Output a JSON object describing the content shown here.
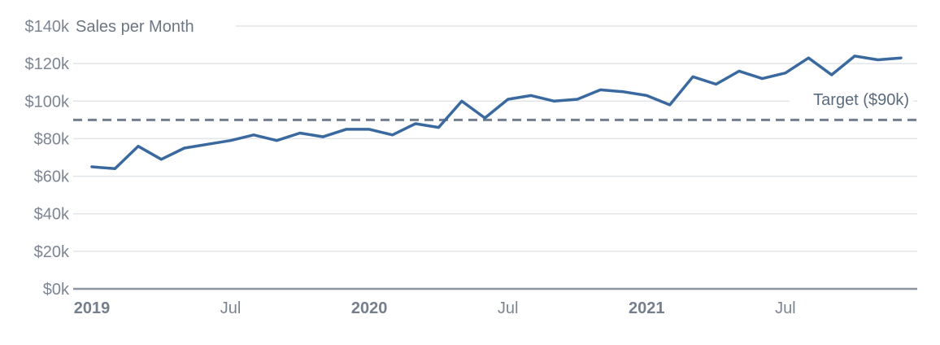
{
  "chart_data": {
    "type": "line",
    "title": "Sales per Month",
    "x": [
      "Jan 2019",
      "Feb 2019",
      "Mar 2019",
      "Apr 2019",
      "May 2019",
      "Jun 2019",
      "Jul 2019",
      "Aug 2019",
      "Sep 2019",
      "Oct 2019",
      "Nov 2019",
      "Dec 2019",
      "Jan 2020",
      "Feb 2020",
      "Mar 2020",
      "Apr 2020",
      "May 2020",
      "Jun 2020",
      "Jul 2020",
      "Aug 2020",
      "Sep 2020",
      "Oct 2020",
      "Nov 2020",
      "Dec 2020",
      "Jan 2021",
      "Feb 2021",
      "Mar 2021",
      "Apr 2021",
      "May 2021",
      "Jun 2021",
      "Jul 2021",
      "Aug 2021",
      "Sep 2021",
      "Oct 2021",
      "Nov 2021",
      "Dec 2021"
    ],
    "series": [
      {
        "name": "Sales per Month",
        "unit": "$k",
        "values": [
          65,
          64,
          76,
          69,
          75,
          77,
          79,
          82,
          79,
          83,
          81,
          85,
          85,
          82,
          88,
          86,
          100,
          91,
          101,
          103,
          100,
          101,
          106,
          105,
          103,
          98,
          113,
          109,
          116,
          112,
          115,
          123,
          114,
          124,
          122,
          123
        ]
      }
    ],
    "ylim": [
      0,
      140
    ],
    "y_ticks": [
      {
        "value": 140,
        "label": "$140k"
      },
      {
        "value": 120,
        "label": "$120k"
      },
      {
        "value": 100,
        "label": "$100k"
      },
      {
        "value": 80,
        "label": "$80k"
      },
      {
        "value": 60,
        "label": "$60k"
      },
      {
        "value": 40,
        "label": "$40k"
      },
      {
        "value": 20,
        "label": "$20k"
      },
      {
        "value": 0,
        "label": "$0k"
      }
    ],
    "x_ticks": [
      {
        "label": "2019",
        "month_index": 0,
        "bold": true
      },
      {
        "label": "Jul",
        "month_index": 6,
        "bold": false
      },
      {
        "label": "2020",
        "month_index": 12,
        "bold": true
      },
      {
        "label": "Jul",
        "month_index": 18,
        "bold": false
      },
      {
        "label": "2021",
        "month_index": 24,
        "bold": true
      },
      {
        "label": "Jul",
        "month_index": 30,
        "bold": false
      }
    ],
    "target": {
      "label": "Target ($90k)",
      "value": 90
    },
    "grid": "horizontal",
    "legend": "none",
    "colors": {
      "series_line": "#3a699f",
      "target_line": "#737f8d",
      "target_label": "#5b6b7e",
      "grid_line": "#e2e5e8",
      "axis_line": "#8a94a0",
      "tick_label": "#7d8592",
      "tick_label_bold": "#757e8c",
      "title": "#6d7683",
      "background": "#ffffff"
    }
  }
}
